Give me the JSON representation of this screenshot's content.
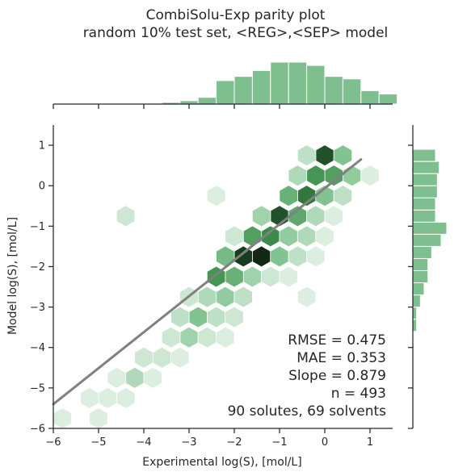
{
  "chart_data": {
    "type": "hexbin",
    "title": "CombiSolu-Exp parity plot",
    "subtitle": "random 10% test set, <REG>,<SEP> model",
    "xlabel": "Experimental log(S), [mol/L]",
    "ylabel": "Model log(S), [mol/L]",
    "xlim": [
      -6,
      1.5
    ],
    "ylim": [
      -6,
      1.5
    ],
    "xticks": [
      "−6",
      "−5",
      "−4",
      "−3",
      "−2",
      "−1",
      "0",
      "1"
    ],
    "yticks": [
      "−6",
      "−5",
      "−4",
      "−3",
      "−2",
      "−1",
      "0",
      "1"
    ],
    "colors": {
      "accent": "#4c9a5c",
      "line": "#808080",
      "hist": "#7fbf8f",
      "axis": "#262626"
    },
    "fit_line": {
      "x": [
        -6,
        0.8
      ],
      "y": [
        -5.4,
        0.65
      ]
    },
    "stats": [
      "RMSE = 0.475",
      "MAE = 0.353",
      "Slope = 0.879",
      "n = 493",
      "90 solutes, 69 solvents"
    ],
    "hexbins": [
      {
        "x": 0.0,
        "y": 0.75,
        "v": 0.8
      },
      {
        "x": 0.4,
        "y": 0.75,
        "v": 0.35
      },
      {
        "x": -0.4,
        "y": 0.75,
        "v": 0.15
      },
      {
        "x": 0.6,
        "y": 0.25,
        "v": 0.3
      },
      {
        "x": 0.2,
        "y": 0.25,
        "v": 0.55
      },
      {
        "x": -0.2,
        "y": 0.25,
        "v": 0.6
      },
      {
        "x": -0.6,
        "y": 0.25,
        "v": 0.2
      },
      {
        "x": 1.0,
        "y": 0.25,
        "v": 0.05
      },
      {
        "x": -0.4,
        "y": -0.25,
        "v": 0.7
      },
      {
        "x": 0.0,
        "y": -0.25,
        "v": 0.35
      },
      {
        "x": 0.4,
        "y": -0.25,
        "v": 0.15
      },
      {
        "x": -0.8,
        "y": -0.25,
        "v": 0.45
      },
      {
        "x": -2.4,
        "y": -0.25,
        "v": 0.05
      },
      {
        "x": -1.0,
        "y": -0.75,
        "v": 0.8
      },
      {
        "x": -0.6,
        "y": -0.75,
        "v": 0.5
      },
      {
        "x": -1.4,
        "y": -0.75,
        "v": 0.25
      },
      {
        "x": -0.2,
        "y": -0.75,
        "v": 0.2
      },
      {
        "x": 0.2,
        "y": -0.75,
        "v": 0.05
      },
      {
        "x": -4.4,
        "y": -0.75,
        "v": 0.1
      },
      {
        "x": -1.2,
        "y": -1.25,
        "v": 0.65
      },
      {
        "x": -1.6,
        "y": -1.25,
        "v": 0.55
      },
      {
        "x": -0.8,
        "y": -1.25,
        "v": 0.3
      },
      {
        "x": -0.4,
        "y": -1.25,
        "v": 0.2
      },
      {
        "x": 0.0,
        "y": -1.25,
        "v": 0.05
      },
      {
        "x": -2.0,
        "y": -1.25,
        "v": 0.1
      },
      {
        "x": -1.4,
        "y": -1.75,
        "v": 0.9
      },
      {
        "x": -1.8,
        "y": -1.75,
        "v": 0.85
      },
      {
        "x": -1.0,
        "y": -1.75,
        "v": 0.35
      },
      {
        "x": -2.2,
        "y": -1.75,
        "v": 0.4
      },
      {
        "x": -0.6,
        "y": -1.75,
        "v": 0.15
      },
      {
        "x": -0.2,
        "y": -1.75,
        "v": 0.05
      },
      {
        "x": -1.6,
        "y": -2.25,
        "v": 0.25
      },
      {
        "x": -2.0,
        "y": -2.25,
        "v": 0.45
      },
      {
        "x": -2.4,
        "y": -2.25,
        "v": 0.6
      },
      {
        "x": -1.2,
        "y": -2.25,
        "v": 0.1
      },
      {
        "x": -0.8,
        "y": -2.25,
        "v": 0.05
      },
      {
        "x": -2.2,
        "y": -2.75,
        "v": 0.3
      },
      {
        "x": -2.6,
        "y": -2.75,
        "v": 0.2
      },
      {
        "x": -1.8,
        "y": -2.75,
        "v": 0.15
      },
      {
        "x": -3.0,
        "y": -2.75,
        "v": 0.1
      },
      {
        "x": -0.4,
        "y": -2.75,
        "v": 0.05
      },
      {
        "x": -2.4,
        "y": -3.25,
        "v": 0.15
      },
      {
        "x": -2.8,
        "y": -3.25,
        "v": 0.35
      },
      {
        "x": -2.0,
        "y": -3.25,
        "v": 0.1
      },
      {
        "x": -3.2,
        "y": -3.25,
        "v": 0.15
      },
      {
        "x": -3.0,
        "y": -3.75,
        "v": 0.25
      },
      {
        "x": -2.6,
        "y": -3.75,
        "v": 0.1
      },
      {
        "x": -3.4,
        "y": -3.75,
        "v": 0.1
      },
      {
        "x": -2.2,
        "y": -3.75,
        "v": 0.05
      },
      {
        "x": -3.6,
        "y": -4.25,
        "v": 0.1
      },
      {
        "x": -3.2,
        "y": -4.25,
        "v": 0.05
      },
      {
        "x": -4.0,
        "y": -4.25,
        "v": 0.1
      },
      {
        "x": -4.2,
        "y": -4.75,
        "v": 0.2
      },
      {
        "x": -3.8,
        "y": -4.75,
        "v": 0.05
      },
      {
        "x": -4.6,
        "y": -4.75,
        "v": 0.05
      },
      {
        "x": -4.4,
        "y": -5.25,
        "v": 0.05
      },
      {
        "x": -4.8,
        "y": -5.25,
        "v": 0.05
      },
      {
        "x": -5.2,
        "y": -5.25,
        "v": 0.05
      },
      {
        "x": -5.0,
        "y": -5.75,
        "v": 0.05
      },
      {
        "x": -5.8,
        "y": -5.75,
        "v": 0.05
      }
    ],
    "marginal_x": {
      "bins": [
        -4.0,
        -3.6,
        -3.2,
        -2.8,
        -2.4,
        -2.0,
        -1.6,
        -1.2,
        -0.8,
        -0.4,
        0.0,
        0.4,
        0.8,
        1.2
      ],
      "counts": [
        1,
        2,
        4,
        8,
        28,
        33,
        40,
        50,
        50,
        46,
        33,
        30,
        16,
        12
      ]
    },
    "marginal_y": {
      "bins": [
        -6.0,
        -5.7,
        -5.4,
        -5.1,
        -4.8,
        -4.5,
        -4.2,
        -3.9,
        -3.6,
        -3.3,
        -3.0,
        -2.7,
        -2.4,
        -2.1,
        -1.8,
        -1.5,
        -1.2,
        -0.9,
        -0.6,
        -0.3,
        0.0,
        0.3,
        0.6,
        0.9,
        1.2
      ],
      "counts": [
        0.5,
        0.5,
        0.5,
        0.5,
        0.5,
        0.5,
        0.5,
        0,
        2,
        2,
        4,
        6,
        8,
        8,
        10,
        15,
        18,
        12,
        12,
        13,
        13,
        14,
        12,
        0,
        0
      ]
    }
  }
}
